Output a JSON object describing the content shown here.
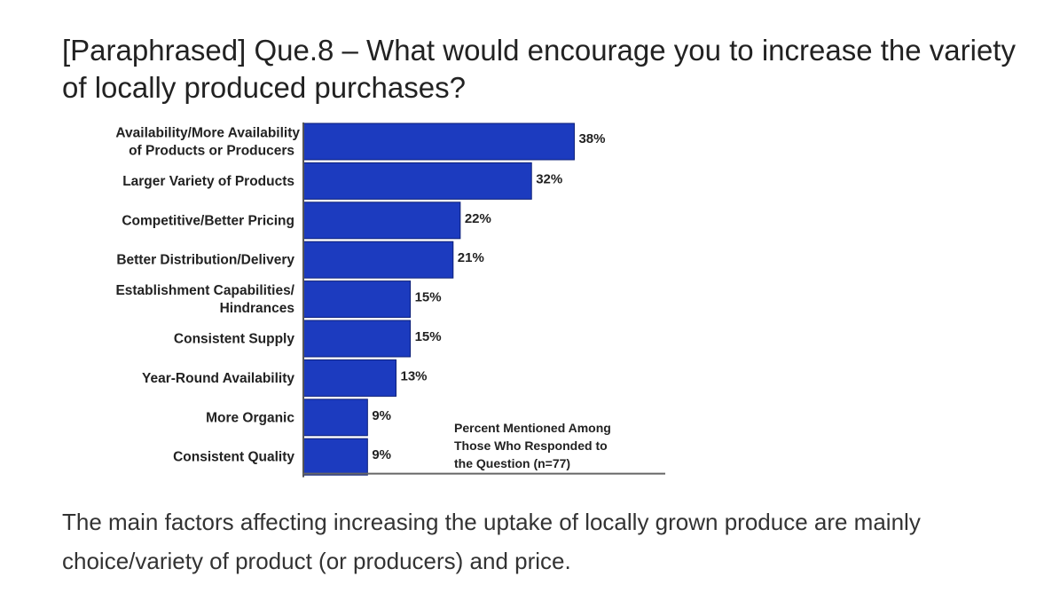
{
  "page": {
    "title": "[Paraphrased] Que.8 – What would encourage you to increase the variety of locally produced purchases?",
    "caption": "The main factors affecting increasing the uptake of locally grown produce are mainly choice/variety of product (or producers) and price."
  },
  "chart_data": {
    "type": "bar",
    "orientation": "horizontal",
    "categories": [
      [
        "Availability/More Availability",
        "of Products or Producers"
      ],
      [
        "Larger Variety of Products"
      ],
      [
        "Competitive/Better Pricing"
      ],
      [
        "Better Distribution/Delivery"
      ],
      [
        "Establishment Capabilities/",
        "Hindrances"
      ],
      [
        "Consistent Supply"
      ],
      [
        "Year-Round Availability"
      ],
      [
        "More Organic"
      ],
      [
        "Consistent Quality"
      ]
    ],
    "values": [
      38,
      32,
      22,
      21,
      15,
      15,
      13,
      9,
      9
    ],
    "value_labels": [
      "38%",
      "32%",
      "22%",
      "21%",
      "15%",
      "15%",
      "13%",
      "9%",
      "9%"
    ],
    "unit": "%",
    "xlim": [
      0,
      52
    ],
    "grid": false,
    "bar_color": "#1c3bbf",
    "note": [
      "Percent Mentioned Among",
      "Those Who Responded to",
      "the  Question  (n=77)"
    ]
  }
}
